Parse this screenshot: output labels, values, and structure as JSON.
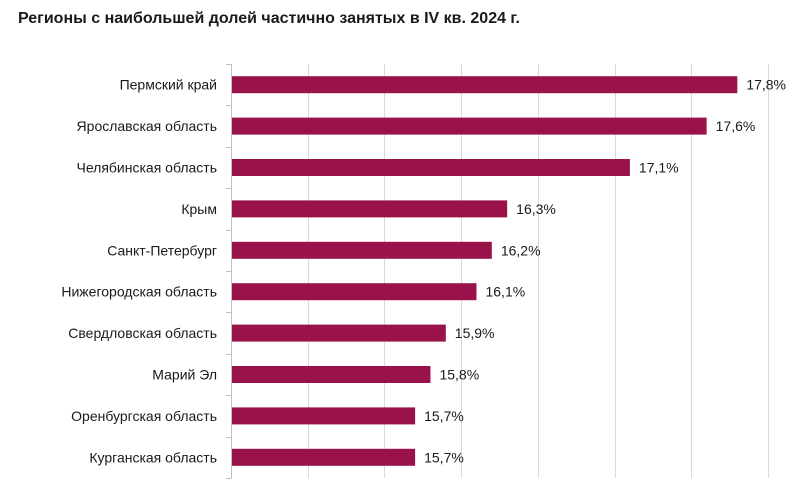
{
  "chart_data": {
    "type": "bar",
    "orientation": "horizontal",
    "title": "Регионы с наибольшей долей частично занятых в IV кв. 2024 г.",
    "categories": [
      "Пермский край",
      "Ярославская область",
      "Челябинская область",
      "Крым",
      "Санкт-Петербург",
      "Нижегородская область",
      "Свердловская область",
      "Марий Эл",
      "Оренбургская область",
      "Курганская область"
    ],
    "values": [
      17.8,
      17.6,
      17.1,
      16.3,
      16.2,
      16.1,
      15.9,
      15.8,
      15.7,
      15.7
    ],
    "value_labels": [
      "17,8%",
      "17,6%",
      "17,1%",
      "16,3%",
      "16,2%",
      "16,1%",
      "15,9%",
      "15,8%",
      "15,7%",
      "15,7%"
    ],
    "xlim": [
      14.5,
      18.0
    ],
    "grid": "vertical",
    "legend": "none",
    "bar_color": "#99124a",
    "grid_color": "#d9d9d9",
    "axis_color": "#bfbfbf"
  }
}
